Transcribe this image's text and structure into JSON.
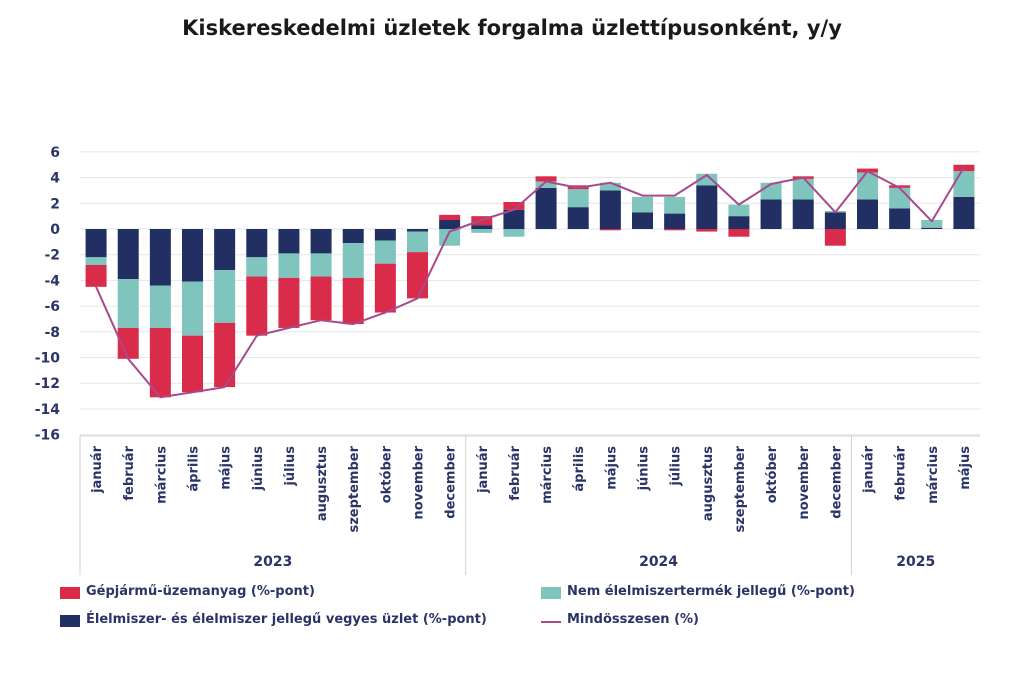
{
  "title": "Kiskereskedelmi üzletek forgalma üzlettípusonként, y/y",
  "colors": {
    "fuel": "#d92b4a",
    "nonfood": "#7fc4bd",
    "food": "#222f63",
    "total": "#a84a8c",
    "axis_text": "#2b3466",
    "grid": "#e6e6e6"
  },
  "legend": {
    "fuel": "Gépjármű-üzemanyag (%-pont)",
    "nonfood": "Nem élelmiszertermék jellegű (%-pont)",
    "food": "Élelmiszer- és élelmiszer jellegű vegyes üzlet (%-pont)",
    "total": "Mindösszesen (%)"
  },
  "chart_data": {
    "type": "bar",
    "stacked": true,
    "title": "Kiskereskedelmi üzletek forgalma üzlettípusonként, y/y",
    "ylim": [
      -16,
      6
    ],
    "yticks": [
      6,
      4,
      2,
      0,
      -2,
      -4,
      -6,
      -8,
      -10,
      -12,
      -14,
      -16
    ],
    "grid": true,
    "legend_position": "bottom",
    "categories": [
      "január",
      "február",
      "március",
      "április",
      "május",
      "június",
      "július",
      "augusztus",
      "szeptember",
      "október",
      "november",
      "december",
      "január",
      "február",
      "március",
      "április",
      "május",
      "június",
      "július",
      "augusztus",
      "szeptember",
      "október",
      "november",
      "december",
      "január",
      "február",
      "március",
      "május"
    ],
    "year_groups": [
      {
        "label": "2023",
        "count": 12
      },
      {
        "label": "2024",
        "count": 12
      },
      {
        "label": "2025",
        "count": 4
      }
    ],
    "series": [
      {
        "name": "Élelmiszer- és élelmiszer jellegű vegyes üzlet (%-pont)",
        "key": "food",
        "values": [
          -2.2,
          -3.9,
          -4.4,
          -4.1,
          -3.2,
          -2.2,
          -1.9,
          -1.9,
          -1.1,
          -0.9,
          -0.2,
          0.7,
          0.3,
          1.5,
          3.2,
          1.7,
          3.0,
          1.3,
          1.2,
          3.4,
          1.0,
          2.3,
          2.3,
          1.3,
          2.3,
          1.6,
          0.1,
          2.5
        ]
      },
      {
        "name": "Nem élelmiszertermék jellegű (%-pont)",
        "key": "nonfood",
        "values": [
          -0.6,
          -3.8,
          -3.3,
          -4.2,
          -4.1,
          -1.5,
          -1.9,
          -1.8,
          -2.7,
          -1.8,
          -1.6,
          -1.3,
          -0.3,
          -0.6,
          0.5,
          1.4,
          0.6,
          1.2,
          1.3,
          0.9,
          0.9,
          1.3,
          1.6,
          0.1,
          2.1,
          1.6,
          0.6,
          2.0
        ]
      },
      {
        "name": "Gépjármű-üzemanyag (%-pont)",
        "key": "fuel",
        "values": [
          -1.7,
          -2.4,
          -5.4,
          -4.4,
          -5.0,
          -4.6,
          -3.9,
          -3.4,
          -3.6,
          -3.8,
          -3.6,
          0.4,
          0.7,
          0.6,
          0.4,
          0.3,
          -0.1,
          0.0,
          -0.1,
          -0.2,
          -0.6,
          0.0,
          0.2,
          -1.3,
          0.3,
          0.2,
          0.0,
          0.5
        ]
      },
      {
        "name": "Mindösszesen (%)",
        "key": "total",
        "type": "line",
        "values": [
          -4.5,
          -10.1,
          -13.1,
          -12.7,
          -12.3,
          -8.3,
          -7.7,
          -7.1,
          -7.4,
          -6.5,
          -5.4,
          -0.2,
          0.7,
          1.5,
          3.7,
          3.2,
          3.6,
          2.6,
          2.6,
          4.2,
          1.9,
          3.5,
          4.0,
          1.3,
          4.5,
          3.2,
          0.6,
          4.8
        ]
      }
    ]
  }
}
